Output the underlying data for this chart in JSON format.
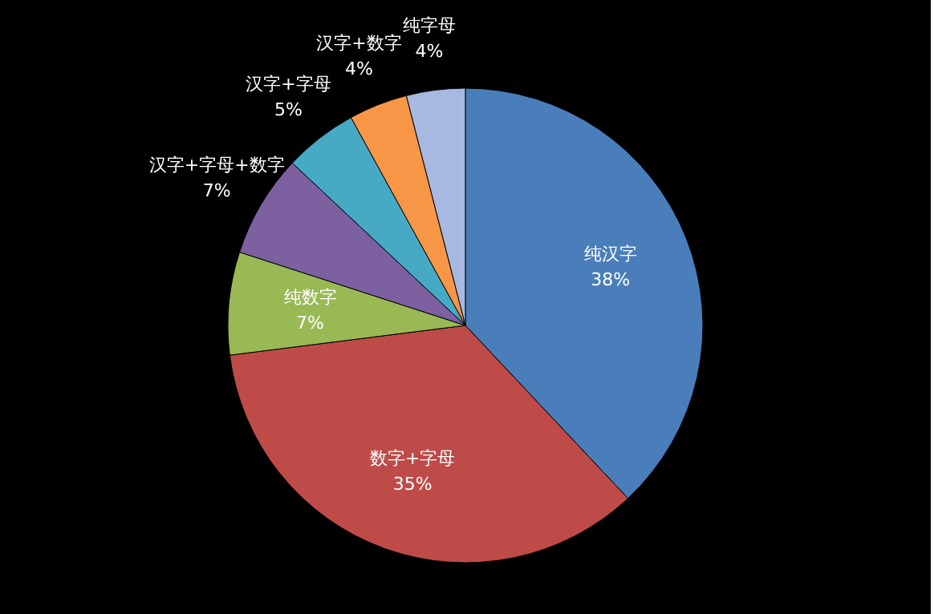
{
  "chart_data": {
    "type": "pie",
    "categories": [
      "纯汉字",
      "数字+字母",
      "纯数字",
      "汉字+字母+数字",
      "汉字+字母",
      "汉字+数字",
      "纯字母"
    ],
    "values": [
      38,
      35,
      7,
      7,
      5,
      4,
      4
    ],
    "value_labels": [
      "38%",
      "35%",
      "7%",
      "7%",
      "5%",
      "4%",
      "4%"
    ],
    "colors": [
      "#4a7ebb",
      "#be4b48",
      "#98b954",
      "#7d60a0",
      "#46aac5",
      "#f79646",
      "#a7b9e0"
    ]
  }
}
